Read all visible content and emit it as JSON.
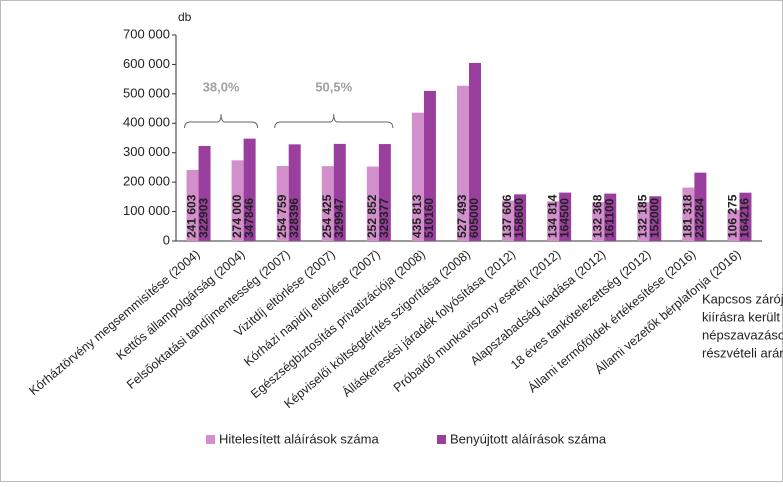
{
  "chart_data": {
    "type": "bar",
    "y_unit": "db",
    "categories": [
      "Kórháztörvény megsemmisítése (2004)",
      "Kettős állampolgárság (2004)",
      "Felsőoktatási tandíjmentesség (2007)",
      "Vizitdíj eltörlése (2007)",
      "Kórházi napidíj eltörlése (2007)",
      "Egészségbiztosítás privatizációja (2008)",
      "Képviselői költségtérítés szigorítása (2008)",
      "Álláskeresési járadék folyósítása (2012)",
      "Próbaidő munkaviszony esetén (2012)",
      "Alapszabadság kiadása (2012)",
      "18 éves tankötelezettség (2012)",
      "Állami termőföldek értékesítése (2016)",
      "Állami vezetők bérplafonja (2016)"
    ],
    "series": [
      {
        "name": "Hitelesített aláírások száma",
        "color": "#d38fcb",
        "values": [
          241603,
          274000,
          254759,
          254425,
          252852,
          435813,
          527493,
          137606,
          134814,
          132368,
          132185,
          181318,
          106275
        ],
        "value_labels": [
          "241 603",
          "274 000",
          "254 759",
          "254 425",
          "252 852",
          "435 813",
          "527 493",
          "137 606",
          "134 814",
          "132 368",
          "132 185",
          "181 318",
          "106 275"
        ]
      },
      {
        "name": "Benyújtott aláírások száma",
        "color": "#9a3f9e",
        "values": [
          322903,
          347846,
          328396,
          329947,
          329377,
          510160,
          605000,
          158600,
          164500,
          161100,
          152000,
          232284,
          164216
        ],
        "value_labels": [
          "322903",
          "347846",
          "328396",
          "329947",
          "329377",
          "510160",
          "605000",
          "158600",
          "164500",
          "161100",
          "152000",
          "232284",
          "164216"
        ]
      }
    ],
    "ylim": [
      0,
      700000
    ],
    "yticks": [
      0,
      {
        "value": 100000,
        "label": "100 000"
      },
      {
        "value": 200000,
        "label": "200 000"
      },
      {
        "value": 300000,
        "label": "300 000"
      },
      {
        "value": 400000,
        "label": "400 000"
      },
      {
        "value": 500000,
        "label": "500 000"
      },
      {
        "value": 600000,
        "label": "600 000"
      },
      {
        "value": 700000,
        "label": "700 000"
      }
    ],
    "annotations": [
      "38,0%",
      "50,5%"
    ],
    "note": [
      "Kapcsos zárójel: a",
      "kiírásra került",
      "népszavazások",
      "részvételi aránya."
    ],
    "legend": "bottom"
  }
}
